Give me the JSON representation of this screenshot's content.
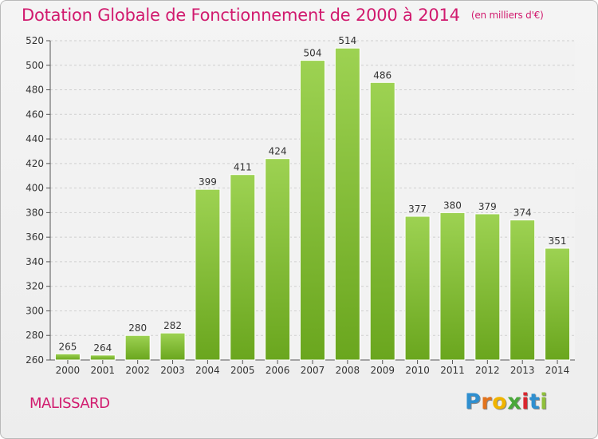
{
  "title": "Dotation Globale de Fonctionnement de 2000 à 2014",
  "unit_label": "(en milliers d'€)",
  "commune": "MALISSARD",
  "logo": {
    "letters": [
      "P",
      "r",
      "o",
      "x",
      "i",
      "t",
      "i"
    ],
    "colors": [
      "#2f8fcf",
      "#e2731d",
      "#f0b400",
      "#4aa83a",
      "#d9262e",
      "#2f8fcf",
      "#8fc03b"
    ]
  },
  "colors": {
    "bar_top": "#9dd252",
    "bar_bottom": "#6aa61e",
    "title": "#d11a6e",
    "grid": "#cfcfcf"
  },
  "chart_data": {
    "type": "bar",
    "title": "Dotation Globale de Fonctionnement de 2000 à 2014",
    "subtitle": "(en milliers d'€)",
    "categories": [
      "2000",
      "2001",
      "2002",
      "2003",
      "2004",
      "2005",
      "2006",
      "2007",
      "2008",
      "2009",
      "2010",
      "2011",
      "2012",
      "2013",
      "2014"
    ],
    "values": [
      265,
      264,
      280,
      282,
      399,
      411,
      424,
      504,
      514,
      486,
      377,
      380,
      379,
      374,
      351
    ],
    "ylim": [
      260,
      520
    ],
    "yticks": [
      260,
      280,
      300,
      320,
      340,
      360,
      380,
      400,
      420,
      440,
      460,
      480,
      500,
      520
    ],
    "grid": true,
    "legend": "none"
  }
}
